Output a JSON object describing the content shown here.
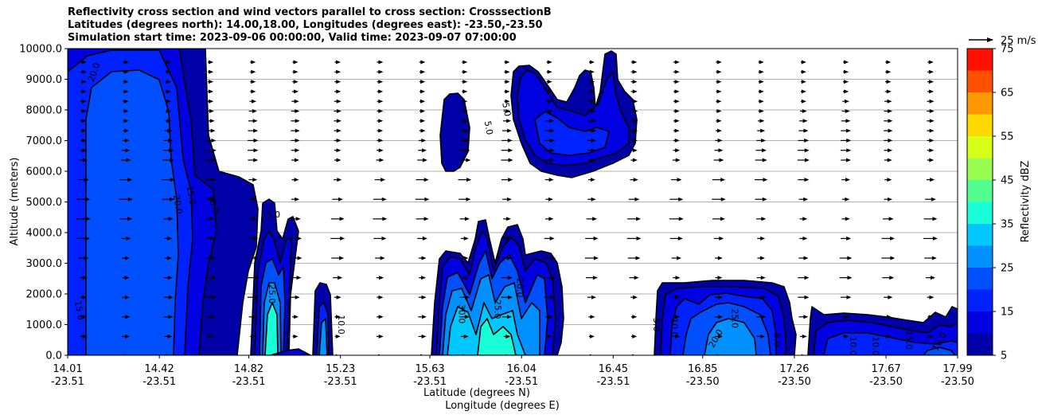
{
  "title_lines": [
    "Reflectivity cross section and wind vectors parallel to cross section: CrosssectionB",
    "Latitudes (degrees north): 14.00,18.00, Longitudes (degrees east): -23.50,-23.50",
    "Simulation start time: 2023-09-06 00:00:00, Valid time: 2023-09-07 07:00:00"
  ],
  "chart_data": {
    "type": "contourf",
    "ylabel": "Altitude (meters)",
    "xlabel_line1": "Latitude (degrees N)",
    "xlabel_line2": "Longitude (degrees E)",
    "ylim": [
      0,
      10000
    ],
    "xlim": [
      14.01,
      17.99
    ],
    "y_ticks": [
      {
        "value": 0,
        "label": "0.0"
      },
      {
        "value": 1000,
        "label": "1000.0"
      },
      {
        "value": 2000,
        "label": "2000.0"
      },
      {
        "value": 3000,
        "label": "3000.0"
      },
      {
        "value": 4000,
        "label": "4000.0"
      },
      {
        "value": 5000,
        "label": "5000.0"
      },
      {
        "value": 6000,
        "label": "6000.0"
      },
      {
        "value": 7000,
        "label": "7000.0"
      },
      {
        "value": 8000,
        "label": "8000.0"
      },
      {
        "value": 9000,
        "label": "9000.0"
      },
      {
        "value": 10000,
        "label": "10000.0"
      }
    ],
    "x_ticks": [
      {
        "lat": 14.01,
        "lat_label": "14.01",
        "lon_label": "-23.51"
      },
      {
        "lat": 14.42,
        "lat_label": "14.42",
        "lon_label": "-23.51"
      },
      {
        "lat": 14.82,
        "lat_label": "14.82",
        "lon_label": "-23.51"
      },
      {
        "lat": 15.23,
        "lat_label": "15.23",
        "lon_label": "-23.51"
      },
      {
        "lat": 15.63,
        "lat_label": "15.63",
        "lon_label": "-23.51"
      },
      {
        "lat": 16.04,
        "lat_label": "16.04",
        "lon_label": "-23.51"
      },
      {
        "lat": 16.45,
        "lat_label": "16.45",
        "lon_label": "-23.51"
      },
      {
        "lat": 16.85,
        "lat_label": "16.85",
        "lon_label": "-23.50"
      },
      {
        "lat": 17.26,
        "lat_label": "17.26",
        "lon_label": "-23.50"
      },
      {
        "lat": 17.67,
        "lat_label": "17.67",
        "lon_label": "-23.50"
      },
      {
        "lat": 17.99,
        "lat_label": "17.99",
        "lon_label": "-23.50"
      }
    ],
    "grid": "horizontal",
    "colorbar": {
      "label": "Reflectivity dBZ",
      "levels": [
        5,
        10,
        15,
        20,
        25,
        30,
        35,
        40,
        45,
        50,
        55,
        60,
        65,
        70,
        75
      ],
      "tick_values": [
        5,
        15,
        25,
        35,
        45,
        55,
        65,
        75
      ],
      "colors": [
        "#0000a8",
        "#0000e0",
        "#0022ff",
        "#0050ff",
        "#0090ff",
        "#00c8ff",
        "#18ffd8",
        "#50ff90",
        "#98ff50",
        "#d8ff18",
        "#ffd800",
        "#ff9800",
        "#ff5000",
        "#ff1000",
        "#a80000"
      ]
    },
    "wind_key_label": "25 m/s",
    "contour_labels": [
      {
        "lat": 14.14,
        "alt": 9200,
        "text": "20.0",
        "rot": -70
      },
      {
        "lat": 14.05,
        "alt": 1450,
        "text": "15.0",
        "rot": 80
      },
      {
        "lat": 14.49,
        "alt": 4900,
        "text": "20.0",
        "rot": 80
      },
      {
        "lat": 14.55,
        "alt": 5200,
        "text": "15.0",
        "rot": 80
      },
      {
        "lat": 14.65,
        "alt": 4900,
        "text": "10.0",
        "rot": 70
      },
      {
        "lat": 14.93,
        "alt": 4500,
        "text": "5.0",
        "rot": 0
      },
      {
        "lat": 14.91,
        "alt": 2000,
        "text": "25.0",
        "rot": 90
      },
      {
        "lat": 15.22,
        "alt": 1000,
        "text": "10.0",
        "rot": 90
      },
      {
        "lat": 15.88,
        "alt": 7400,
        "text": "5.0",
        "rot": 80
      },
      {
        "lat": 15.76,
        "alt": 1350,
        "text": "30.0",
        "rot": 90
      },
      {
        "lat": 15.96,
        "alt": 8000,
        "text": "5.0",
        "rot": 80
      },
      {
        "lat": 15.92,
        "alt": 1500,
        "text": "25.0",
        "rot": 90
      },
      {
        "lat": 16.02,
        "alt": 2200,
        "text": "20.0",
        "rot": 90
      },
      {
        "lat": 16.63,
        "alt": 1000,
        "text": "5.0",
        "rot": 90
      },
      {
        "lat": 16.71,
        "alt": 900,
        "text": "10.0",
        "rot": 90
      },
      {
        "lat": 16.92,
        "alt": 500,
        "text": "20.0",
        "rot": -60
      },
      {
        "lat": 16.98,
        "alt": 1200,
        "text": "25.0",
        "rot": 90
      },
      {
        "lat": 17.17,
        "alt": 500,
        "text": "5.0",
        "rot": 90
      },
      {
        "lat": 17.51,
        "alt": 300,
        "text": "10.0",
        "rot": 90
      },
      {
        "lat": 17.61,
        "alt": 300,
        "text": "10.0",
        "rot": 90
      },
      {
        "lat": 17.76,
        "alt": 500,
        "text": "15.0",
        "rot": 90
      },
      {
        "lat": 17.92,
        "alt": 400,
        "text": "10.0",
        "rot": -60
      }
    ]
  }
}
